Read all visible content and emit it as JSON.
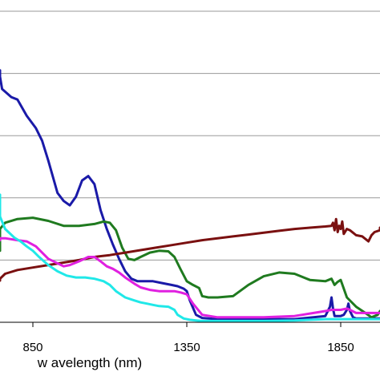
{
  "chart_data": {
    "type": "line",
    "title": "",
    "xlabel": "w avelength (nm)",
    "ylabel": "",
    "xlim": [
      700,
      2000
    ],
    "ylim": [
      0,
      5
    ],
    "x_ticks": [
      850,
      1350,
      1850
    ],
    "x_tick_labels": [
      "850",
      "1350",
      "1850"
    ],
    "y_gridlines": [
      1,
      2,
      3,
      4,
      5
    ],
    "grid": "horizontal",
    "legend": "none",
    "series": [
      {
        "color": "#1a1aa8",
        "x": [
          700,
          720,
          750,
          780,
          800,
          830,
          860,
          880,
          900,
          930,
          950,
          970,
          990,
          1010,
          1030,
          1050,
          1070,
          1090,
          1110,
          1130,
          1150,
          1170,
          1190,
          1210,
          1240,
          1270,
          1300,
          1320,
          1340,
          1350,
          1360,
          1380,
          1400,
          1450,
          1500,
          1600,
          1700,
          1800,
          1815,
          1820,
          1825,
          1830,
          1840,
          1850,
          1860,
          1870,
          1875,
          1880,
          1890,
          1900,
          2000
        ],
        "y": [
          4.05,
          3.95,
          3.75,
          3.62,
          3.58,
          3.32,
          3.12,
          2.92,
          2.6,
          2.08,
          1.95,
          1.88,
          2.02,
          2.28,
          2.35,
          2.22,
          1.8,
          1.5,
          1.25,
          1.02,
          0.82,
          0.7,
          0.66,
          0.66,
          0.66,
          0.63,
          0.6,
          0.58,
          0.54,
          0.5,
          0.35,
          0.12,
          0.07,
          0.05,
          0.05,
          0.05,
          0.05,
          0.1,
          0.25,
          0.4,
          0.22,
          0.1,
          0.1,
          0.1,
          0.12,
          0.2,
          0.3,
          0.18,
          0.08,
          0.06,
          0.06
        ]
      },
      {
        "color": "#1f7a1f",
        "x": [
          700,
          720,
          740,
          760,
          800,
          850,
          900,
          950,
          1000,
          1050,
          1080,
          1100,
          1120,
          1140,
          1160,
          1180,
          1200,
          1230,
          1260,
          1290,
          1310,
          1330,
          1350,
          1370,
          1390,
          1400,
          1420,
          1450,
          1500,
          1550,
          1600,
          1650,
          1700,
          1750,
          1800,
          1820,
          1830,
          1840,
          1850,
          1870,
          1900,
          1930,
          1950,
          1970,
          2000
        ],
        "y": [
          1.15,
          1.35,
          1.5,
          1.6,
          1.66,
          1.68,
          1.63,
          1.55,
          1.55,
          1.58,
          1.62,
          1.6,
          1.48,
          1.2,
          1.02,
          1.0,
          1.05,
          1.12,
          1.15,
          1.14,
          1.05,
          0.85,
          0.66,
          0.6,
          0.55,
          0.42,
          0.4,
          0.4,
          0.42,
          0.6,
          0.74,
          0.8,
          0.78,
          0.68,
          0.66,
          0.7,
          0.6,
          0.65,
          0.68,
          0.4,
          0.25,
          0.15,
          0.08,
          0.12,
          0.18
        ]
      },
      {
        "color": "#7a1010",
        "x": [
          700,
          720,
          760,
          800,
          850,
          900,
          950,
          1000,
          1050,
          1100,
          1150,
          1200,
          1250,
          1300,
          1350,
          1400,
          1450,
          1500,
          1550,
          1600,
          1650,
          1700,
          1750,
          1800,
          1820,
          1825,
          1830,
          1835,
          1840,
          1845,
          1850,
          1855,
          1860,
          1870,
          1880,
          1890,
          1900,
          1920,
          1940,
          1950,
          1960,
          1980,
          2000
        ],
        "y": [
          0.67,
          0.7,
          0.78,
          0.84,
          0.88,
          0.92,
          0.96,
          1.0,
          1.05,
          1.08,
          1.12,
          1.16,
          1.2,
          1.24,
          1.28,
          1.32,
          1.35,
          1.38,
          1.41,
          1.44,
          1.47,
          1.5,
          1.52,
          1.54,
          1.55,
          1.6,
          1.48,
          1.66,
          1.45,
          1.55,
          1.5,
          1.62,
          1.42,
          1.5,
          1.48,
          1.44,
          1.4,
          1.38,
          1.3,
          1.4,
          1.45,
          1.48,
          1.52
        ]
      },
      {
        "color": "#e020e0",
        "x": [
          700,
          720,
          760,
          800,
          830,
          860,
          900,
          950,
          970,
          1000,
          1030,
          1050,
          1070,
          1090,
          1110,
          1130,
          1150,
          1180,
          1200,
          1230,
          1260,
          1290,
          1310,
          1330,
          1350,
          1370,
          1400,
          1450,
          1500,
          1600,
          1700,
          1750,
          1800,
          1820,
          1850,
          1870,
          1880,
          1900,
          1950,
          2000
        ],
        "y": [
          1.32,
          1.35,
          1.35,
          1.32,
          1.3,
          1.22,
          1.02,
          0.9,
          0.92,
          0.98,
          1.05,
          1.05,
          0.98,
          0.9,
          0.86,
          0.8,
          0.72,
          0.62,
          0.56,
          0.52,
          0.5,
          0.5,
          0.5,
          0.48,
          0.45,
          0.3,
          0.12,
          0.08,
          0.08,
          0.08,
          0.1,
          0.14,
          0.18,
          0.2,
          0.2,
          0.22,
          0.2,
          0.15,
          0.15,
          0.15
        ]
      },
      {
        "color": "#20e8e8",
        "x": [
          700,
          720,
          740,
          760,
          790,
          810,
          830,
          850,
          870,
          900,
          930,
          960,
          990,
          1020,
          1050,
          1080,
          1100,
          1120,
          1150,
          1180,
          1200,
          1220,
          1240,
          1260,
          1290,
          1310,
          1320,
          1340,
          1360,
          1380,
          1400,
          1450,
          1500,
          1600,
          1700,
          1800,
          1850,
          1900,
          1950,
          2000
        ],
        "y": [
          2.05,
          1.9,
          1.7,
          1.5,
          1.36,
          1.3,
          1.22,
          1.15,
          1.05,
          0.92,
          0.82,
          0.75,
          0.72,
          0.72,
          0.7,
          0.66,
          0.6,
          0.5,
          0.4,
          0.35,
          0.32,
          0.3,
          0.28,
          0.26,
          0.25,
          0.2,
          0.12,
          0.06,
          0.04,
          0.03,
          0.02,
          0.02,
          0.02,
          0.02,
          0.03,
          0.05,
          0.05,
          0.05,
          0.05,
          0.05
        ]
      }
    ]
  }
}
